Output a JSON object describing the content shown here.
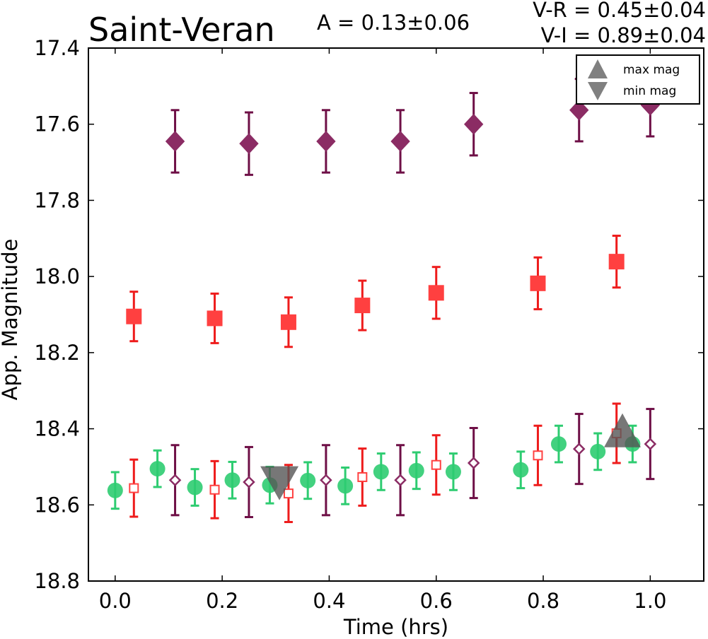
{
  "chart_data": {
    "type": "scatter",
    "title": "Saint-Veran",
    "annotations": {
      "amplitude": "A  = 0.13±0.06",
      "v_r": "V-R = 0.45±0.04",
      "v_i": "V-I  = 0.89±0.04"
    },
    "xlabel": "Time (hrs)",
    "ylabel": "App. Magnitude",
    "xlim": [
      -0.05,
      1.1
    ],
    "ylim": [
      18.8,
      17.4
    ],
    "y_inverted": true,
    "xticks": [
      "0.0",
      "0.2",
      "0.4",
      "0.6",
      "0.8",
      "1.0"
    ],
    "yticks": [
      "17.4",
      "17.6",
      "17.8",
      "18.0",
      "18.2",
      "18.4",
      "18.6",
      "18.8"
    ],
    "xtick_values": [
      0.0,
      0.2,
      0.4,
      0.6,
      0.8,
      1.0
    ],
    "ytick_values": [
      17.4,
      17.6,
      17.8,
      18.0,
      18.2,
      18.4,
      18.6,
      18.8
    ],
    "grid": false,
    "legend": {
      "placement": "top-right",
      "entries": [
        {
          "label": "max mag",
          "marker": "triangle-up",
          "color": "#808080"
        },
        {
          "label": "min mag",
          "marker": "triangle-down",
          "color": "#808080"
        }
      ]
    },
    "series": [
      {
        "kind": "I",
        "marker": "diamond-filled",
        "color": "#8b2c64",
        "err_color": "#6e0f46",
        "points": [
          {
            "x": 0.112,
            "y": 17.645,
            "err": 0.082
          },
          {
            "x": 0.25,
            "y": 17.651,
            "err": 0.082
          },
          {
            "x": 0.394,
            "y": 17.645,
            "err": 0.082
          },
          {
            "x": 0.533,
            "y": 17.645,
            "err": 0.082
          },
          {
            "x": 0.67,
            "y": 17.6,
            "err": 0.082
          },
          {
            "x": 0.867,
            "y": 17.563,
            "err": 0.082
          },
          {
            "x": 1.0,
            "y": 17.55,
            "err": 0.082
          }
        ]
      },
      {
        "kind": "R",
        "marker": "square-filled",
        "color": "#ff4040",
        "err_color": "#ee1c1c",
        "points": [
          {
            "x": 0.035,
            "y": 18.105,
            "err": 0.065
          },
          {
            "x": 0.186,
            "y": 18.11,
            "err": 0.065
          },
          {
            "x": 0.324,
            "y": 18.12,
            "err": 0.065
          },
          {
            "x": 0.462,
            "y": 18.076,
            "err": 0.065
          },
          {
            "x": 0.6,
            "y": 18.043,
            "err": 0.068
          },
          {
            "x": 0.79,
            "y": 18.018,
            "err": 0.068
          },
          {
            "x": 0.937,
            "y": 17.961,
            "err": 0.068
          }
        ]
      },
      {
        "kind": "V",
        "marker": "circle-filled",
        "color": "#2ecc71",
        "err_color": "#2ecc71",
        "points": [
          {
            "x": 0.0,
            "y": 18.562,
            "err": 0.048
          },
          {
            "x": 0.079,
            "y": 18.505,
            "err": 0.048
          },
          {
            "x": 0.149,
            "y": 18.554,
            "err": 0.048
          },
          {
            "x": 0.219,
            "y": 18.535,
            "err": 0.048
          },
          {
            "x": 0.289,
            "y": 18.548,
            "err": 0.048
          },
          {
            "x": 0.36,
            "y": 18.536,
            "err": 0.048
          },
          {
            "x": 0.43,
            "y": 18.55,
            "err": 0.048
          },
          {
            "x": 0.497,
            "y": 18.513,
            "err": 0.048
          },
          {
            "x": 0.563,
            "y": 18.51,
            "err": 0.048
          },
          {
            "x": 0.632,
            "y": 18.513,
            "err": 0.048
          },
          {
            "x": 0.758,
            "y": 18.508,
            "err": 0.048
          },
          {
            "x": 0.829,
            "y": 18.44,
            "err": 0.048
          },
          {
            "x": 0.902,
            "y": 18.46,
            "err": 0.048
          },
          {
            "x": 0.967,
            "y": 18.44,
            "err": 0.048
          }
        ]
      },
      {
        "kind": "R-shifted",
        "marker": "square-open",
        "color": "#ff4040",
        "err_color": "#ee1c1c",
        "points": [
          {
            "x": 0.035,
            "y": 18.556,
            "err": 0.075
          },
          {
            "x": 0.186,
            "y": 18.56,
            "err": 0.075
          },
          {
            "x": 0.324,
            "y": 18.57,
            "err": 0.075
          },
          {
            "x": 0.462,
            "y": 18.527,
            "err": 0.075
          },
          {
            "x": 0.6,
            "y": 18.495,
            "err": 0.078
          },
          {
            "x": 0.79,
            "y": 18.47,
            "err": 0.078
          },
          {
            "x": 0.937,
            "y": 18.412,
            "err": 0.078
          }
        ]
      },
      {
        "kind": "I-shifted",
        "marker": "diamond-open",
        "color": "#8b2c64",
        "err_color": "#6e0f46",
        "points": [
          {
            "x": 0.112,
            "y": 18.535,
            "err": 0.092
          },
          {
            "x": 0.25,
            "y": 18.54,
            "err": 0.092
          },
          {
            "x": 0.394,
            "y": 18.535,
            "err": 0.092
          },
          {
            "x": 0.533,
            "y": 18.535,
            "err": 0.092
          },
          {
            "x": 0.67,
            "y": 18.49,
            "err": 0.092
          },
          {
            "x": 0.867,
            "y": 18.453,
            "err": 0.092
          },
          {
            "x": 1.0,
            "y": 18.44,
            "err": 0.092
          }
        ]
      }
    ],
    "extrema": [
      {
        "label": "min mag",
        "marker": "triangle-down",
        "x": 0.307,
        "y": 18.545
      },
      {
        "label": "max mag",
        "marker": "triangle-up",
        "x": 0.948,
        "y": 18.445
      }
    ]
  }
}
